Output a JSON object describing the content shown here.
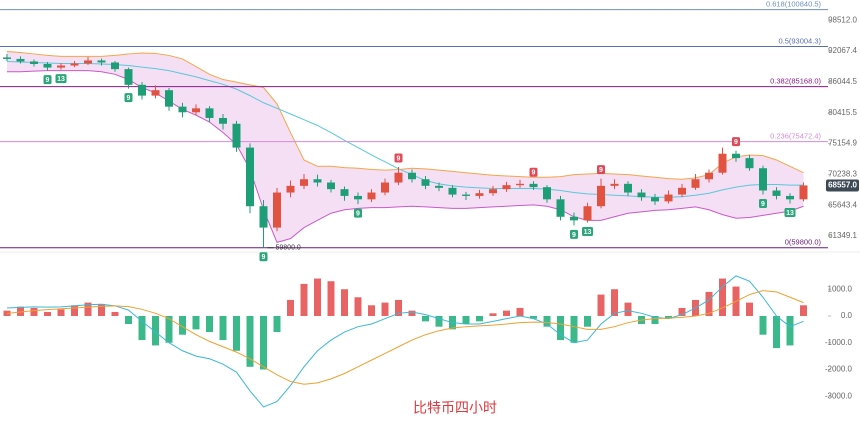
{
  "chart_data": [
    {
      "type": "candlestick",
      "log_scale": true,
      "ylim": [
        59500,
        103000
      ],
      "yticks": [
        {
          "value": 98512,
          "label": "98512.0"
        },
        92067.4,
        86044.5,
        80415.5,
        75154.9,
        70238.3,
        65643.4,
        61349.1
      ],
      "up_color": "#e15241",
      "down_color": "#1e9e77",
      "candles": [
        [
          90800,
          91500,
          90100,
          90500
        ],
        [
          90500,
          91000,
          89600,
          90000
        ],
        [
          90000,
          90400,
          89000,
          89500
        ],
        [
          89500,
          89900,
          88200,
          88800
        ],
        [
          88800,
          89700,
          88400,
          89200
        ],
        [
          89200,
          90100,
          88900,
          89600
        ],
        [
          89600,
          90900,
          89300,
          90200
        ],
        [
          90200,
          90600,
          89200,
          89800
        ],
        [
          89800,
          90100,
          88000,
          88500
        ],
        [
          88500,
          88800,
          84800,
          85500
        ],
        [
          85500,
          86000,
          82800,
          83500
        ],
        [
          83500,
          85400,
          83000,
          84500
        ],
        [
          84500,
          84900,
          80800,
          81500
        ],
        [
          81500,
          82200,
          79600,
          80500
        ],
        [
          80500,
          81900,
          80000,
          81200
        ],
        [
          81200,
          81600,
          78800,
          79500
        ],
        [
          79500,
          80200,
          77500,
          78500
        ],
        [
          78500,
          79000,
          73800,
          74500
        ],
        [
          74500,
          75200,
          64500,
          65500
        ],
        [
          65500,
          66400,
          59800,
          62500
        ],
        [
          62500,
          68200,
          62000,
          67500
        ],
        [
          67500,
          69300,
          66800,
          68500
        ],
        [
          68500,
          70300,
          68000,
          69500
        ],
        [
          69500,
          70200,
          68400,
          69000
        ],
        [
          69000,
          69400,
          67500,
          68000
        ],
        [
          68000,
          68400,
          66300,
          67000
        ],
        [
          67000,
          67500,
          65800,
          66500
        ],
        [
          66500,
          68000,
          66100,
          67500
        ],
        [
          67500,
          69600,
          67100,
          69000
        ],
        [
          69000,
          71400,
          68600,
          70500
        ],
        [
          70500,
          71000,
          69000,
          69500
        ],
        [
          69500,
          70000,
          68000,
          68500
        ],
        [
          68500,
          69000,
          67700,
          68200
        ],
        [
          68200,
          68600,
          66800,
          67200
        ],
        [
          67200,
          67600,
          66400,
          67000
        ],
        [
          67000,
          67900,
          66600,
          67400
        ],
        [
          67400,
          68500,
          67000,
          68000
        ],
        [
          68000,
          69100,
          67600,
          68600
        ],
        [
          68600,
          69400,
          68200,
          68800
        ],
        [
          68800,
          69200,
          67900,
          68300
        ],
        [
          68300,
          68600,
          66000,
          66500
        ],
        [
          66500,
          67000,
          63500,
          64000
        ],
        [
          64000,
          64600,
          62800,
          63500
        ],
        [
          63500,
          66000,
          63200,
          65500
        ],
        [
          65500,
          69600,
          65200,
          68500
        ],
        [
          68500,
          69500,
          68000,
          68800
        ],
        [
          68800,
          69200,
          67000,
          67500
        ],
        [
          67500,
          68000,
          66300,
          66800
        ],
        [
          66800,
          67300,
          65700,
          66200
        ],
        [
          66200,
          67800,
          65900,
          67200
        ],
        [
          67200,
          68800,
          66800,
          68200
        ],
        [
          68200,
          70300,
          67900,
          69500
        ],
        [
          69500,
          71000,
          69000,
          70500
        ],
        [
          70500,
          74500,
          70200,
          73500
        ],
        [
          73500,
          74000,
          72200,
          72800
        ],
        [
          72800,
          73300,
          70800,
          71200
        ],
        [
          71200,
          71600,
          67200,
          67800
        ],
        [
          67800,
          68300,
          66500,
          67000
        ],
        [
          67000,
          67400,
          65900,
          66500
        ],
        [
          66500,
          69000,
          66200,
          68557
        ]
      ],
      "bands": {
        "upper": [
          92000,
          91800,
          91500,
          91200,
          91000,
          91000,
          91000,
          91000,
          91200,
          91500,
          91700,
          91600,
          91200,
          90500,
          89000,
          87500,
          86500,
          86000,
          85500,
          85000,
          82000,
          77000,
          72500,
          71500,
          71500,
          71300,
          71200,
          71000,
          70900,
          71000,
          71200,
          71100,
          70900,
          70700,
          70500,
          70300,
          70100,
          70000,
          69900,
          69800,
          69800,
          69900,
          70200,
          70300,
          70400,
          70300,
          70200,
          70000,
          69800,
          69600,
          69500,
          69700,
          70200,
          72000,
          73000,
          73300,
          73200,
          72500,
          71500,
          70500
        ],
        "middle": [
          90000,
          89900,
          89800,
          89700,
          89600,
          89600,
          89600,
          89500,
          89400,
          89200,
          88900,
          88600,
          88200,
          87600,
          87000,
          86300,
          85600,
          84700,
          83500,
          82200,
          81200,
          80200,
          79200,
          78200,
          77000,
          75700,
          74500,
          73300,
          72200,
          71100,
          70200,
          69300,
          68800,
          68500,
          68300,
          68200,
          68100,
          68100,
          68100,
          68100,
          68000,
          67800,
          67500,
          67300,
          67200,
          67100,
          67000,
          66900,
          66800,
          66800,
          66900,
          67100,
          67400,
          67900,
          68300,
          68600,
          68700,
          68700,
          68600,
          68600
        ],
        "lower": [
          88000,
          88000,
          88100,
          88200,
          88200,
          88200,
          88200,
          88000,
          87500,
          86500,
          85000,
          84000,
          82500,
          81000,
          80000,
          78800,
          77000,
          75000,
          71000,
          65000,
          60500,
          61000,
          62500,
          63500,
          64500,
          65000,
          65200,
          65300,
          65300,
          65400,
          65500,
          65400,
          65300,
          65200,
          65200,
          65300,
          65400,
          65500,
          65600,
          65700,
          65500,
          65000,
          64000,
          63500,
          63500,
          64000,
          64500,
          64700,
          64900,
          65000,
          65200,
          65400,
          65000,
          64300,
          63800,
          63900,
          64200,
          64500,
          64800,
          65500
        ],
        "upper_color": "#f5a54a",
        "middle_color": "#5ac8d8",
        "lower_color": "#c85ac8",
        "fill_color": "#f2d4f2"
      },
      "fib_levels": [
        {
          "value": 100840.5,
          "label": "0.618(100840.5)",
          "color": "#6f8fbf"
        },
        {
          "value": 93004.3,
          "label": "0.5(93004.3)",
          "color": "#5b6fae"
        },
        {
          "value": 85168.0,
          "label": "0.382(85168.0)",
          "color": "#8b1a8b"
        },
        {
          "value": 75472.4,
          "label": "0.236(75472.4)",
          "color": "#d88ad8"
        },
        {
          "value": 59800.0,
          "label": "0(59800.0)",
          "color": "#6a1a7a"
        }
      ],
      "td_buy": [
        null,
        null,
        null,
        "9",
        "13",
        null,
        null,
        null,
        null,
        "9",
        null,
        null,
        null,
        null,
        null,
        null,
        null,
        null,
        null,
        "9",
        null,
        null,
        null,
        null,
        null,
        null,
        "9",
        null,
        null,
        null,
        null,
        null,
        null,
        null,
        null,
        null,
        null,
        null,
        null,
        null,
        null,
        null,
        "9",
        "13",
        null,
        null,
        null,
        null,
        null,
        null,
        null,
        null,
        null,
        null,
        null,
        null,
        "9",
        null,
        "13",
        null
      ],
      "td_sell": [
        null,
        null,
        null,
        null,
        null,
        null,
        null,
        null,
        null,
        null,
        null,
        null,
        null,
        null,
        null,
        null,
        null,
        null,
        null,
        null,
        null,
        null,
        null,
        null,
        null,
        null,
        null,
        null,
        null,
        "9",
        null,
        null,
        null,
        null,
        null,
        null,
        null,
        null,
        null,
        "9",
        null,
        null,
        null,
        null,
        "9",
        null,
        null,
        null,
        null,
        null,
        null,
        null,
        null,
        null,
        "9",
        null,
        null,
        null,
        null,
        null
      ],
      "td_buy_color": "#2ba57a",
      "td_sell_color": "#e04a58",
      "last_price_label": "68557.0",
      "last_price_color": "#3d4a55",
      "low_label": "59800.0"
    },
    {
      "type": "macd",
      "ylim": [
        -4150,
        2280
      ],
      "yticks": [
        {
          "value": 1000,
          "label": "1000.0"
        },
        {
          "value": 0,
          "label": "0.0"
        },
        {
          "value": -1000,
          "label": "-1000.0"
        },
        {
          "value": -2000,
          "label": "-2000.0"
        },
        {
          "value": -3000,
          "label": "-3000.0"
        }
      ],
      "histogram": [
        200,
        350,
        300,
        150,
        250,
        400,
        500,
        450,
        150,
        -300,
        -900,
        -1100,
        -1000,
        -700,
        -500,
        -600,
        -900,
        -1300,
        -1900,
        -2000,
        -600,
        600,
        1200,
        1400,
        1300,
        1000,
        700,
        400,
        500,
        600,
        200,
        -200,
        -400,
        -500,
        -300,
        -200,
        100,
        200,
        300,
        -100,
        -400,
        -900,
        -1000,
        -400,
        800,
        1000,
        500,
        -300,
        -300,
        -100,
        300,
        600,
        900,
        1400,
        1100,
        500,
        -700,
        -1200,
        -1100,
        400
      ],
      "dif": [
        300,
        320,
        340,
        330,
        340,
        380,
        420,
        440,
        380,
        220,
        -200,
        -600,
        -1000,
        -1300,
        -1500,
        -1600,
        -1800,
        -2100,
        -2800,
        -3400,
        -3200,
        -2600,
        -1900,
        -1300,
        -900,
        -600,
        -400,
        -300,
        -100,
        100,
        150,
        50,
        -100,
        -250,
        -300,
        -300,
        -200,
        -100,
        0,
        -100,
        -300,
        -700,
        -1000,
        -900,
        -300,
        100,
        200,
        100,
        -50,
        -100,
        50,
        300,
        600,
        1100,
        1500,
        1300,
        700,
        0,
        -400,
        -200
      ],
      "dea": [
        100,
        150,
        200,
        240,
        270,
        300,
        330,
        360,
        380,
        350,
        250,
        100,
        -100,
        -400,
        -700,
        -950,
        -1150,
        -1350,
        -1600,
        -1900,
        -2200,
        -2450,
        -2550,
        -2500,
        -2350,
        -2150,
        -1900,
        -1650,
        -1400,
        -1150,
        -900,
        -700,
        -550,
        -450,
        -400,
        -370,
        -340,
        -300,
        -250,
        -230,
        -240,
        -300,
        -400,
        -500,
        -500,
        -400,
        -250,
        -150,
        -100,
        -80,
        -50,
        0,
        100,
        300,
        550,
        800,
        950,
        900,
        700,
        500
      ],
      "pos_color": "#e86464",
      "neg_color": "#3cb98a",
      "dif_color": "#3ab8d8",
      "dea_color": "#f0a030",
      "watermark": "比特币四小时",
      "watermark_color": "#e0383c"
    }
  ]
}
